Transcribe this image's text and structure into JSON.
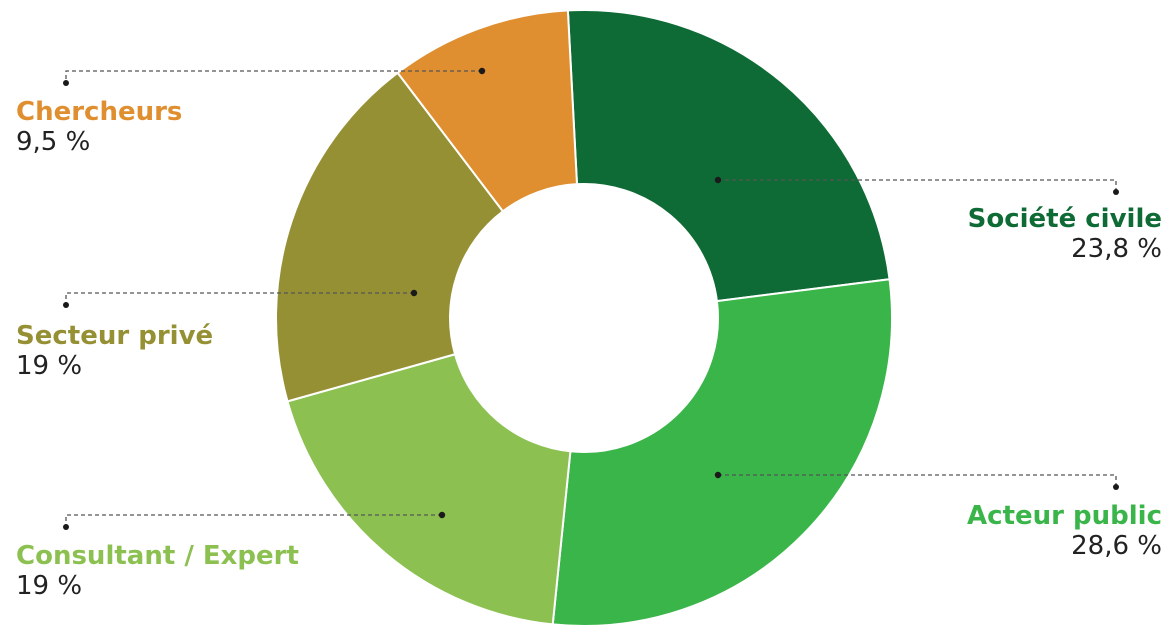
{
  "chart_data": {
    "type": "pie",
    "title": "",
    "donut": true,
    "slices": [
      {
        "name": "Société civile",
        "value_label": "23,8 %",
        "value": 23.8,
        "color": "#0f6b35"
      },
      {
        "name": "Acteur public",
        "value_label": "28,6 %",
        "value": 28.6,
        "color": "#3ab54a"
      },
      {
        "name": "Consultant / Expert",
        "value_label": "19 %",
        "value": 19,
        "color": "#8cc152"
      },
      {
        "name": "Secteur privé",
        "value_label": "19 %",
        "value": 19,
        "color": "#969035"
      },
      {
        "name": "Chercheurs",
        "value_label": "9,5 %",
        "value": 9.5,
        "color": "#e08f30"
      }
    ],
    "start_angle_deg": -3,
    "label_positions": [
      "right",
      "right",
      "left",
      "left",
      "left"
    ]
  }
}
